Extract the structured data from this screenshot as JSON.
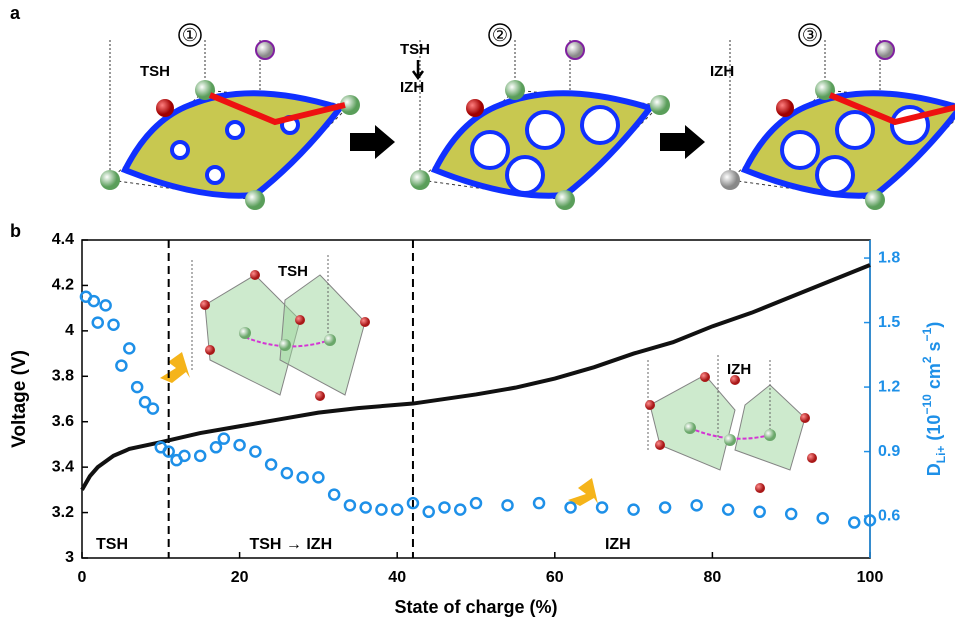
{
  "panel_a": {
    "label": "a",
    "steps": [
      {
        "number": "①",
        "labels": [
          "TSH"
        ]
      },
      {
        "number": "②",
        "labels": [
          "TSH",
          "IZH"
        ]
      },
      {
        "number": "③",
        "labels": [
          "IZH"
        ]
      }
    ]
  },
  "chart_data": {
    "type": "line_scatter",
    "panel_label": "b",
    "xlabel": "State of charge (%)",
    "ylabel": "Voltage (V)",
    "y2label": [
      "D",
      "Li+",
      " (10",
      "−10",
      " cm",
      "2",
      " s",
      "−1",
      ")"
    ],
    "xlim": [
      0,
      100
    ],
    "xticks": [
      0,
      20,
      40,
      60,
      80,
      100
    ],
    "ylim": [
      3,
      4.4
    ],
    "yticks": [
      3,
      3.2,
      3.4,
      3.6,
      3.8,
      4,
      4.2,
      4.4
    ],
    "y2lim": [
      0.405,
      1.884
    ],
    "y2ticks": [
      0.6,
      0.9,
      1.2,
      1.5,
      1.8
    ],
    "series": [
      {
        "name": "Voltage",
        "color": "#111111",
        "axis": "y",
        "x": [
          0,
          1,
          2,
          4,
          6,
          10,
          15,
          20,
          25,
          30,
          35,
          42,
          50,
          55,
          60,
          65,
          70,
          75,
          80,
          85,
          90,
          95,
          100
        ],
        "values": [
          3.3,
          3.36,
          3.4,
          3.45,
          3.48,
          3.51,
          3.55,
          3.58,
          3.61,
          3.64,
          3.66,
          3.68,
          3.72,
          3.75,
          3.79,
          3.84,
          3.9,
          3.95,
          4.02,
          4.08,
          4.15,
          4.22,
          4.29
        ]
      },
      {
        "name": "D",
        "color": "#1e90e8",
        "axis": "y2",
        "x": [
          0.5,
          1.5,
          2,
          3,
          4,
          5,
          6,
          7,
          8,
          9,
          10,
          11,
          12,
          13,
          15,
          17,
          18,
          20,
          22,
          24,
          26,
          28,
          30,
          32,
          34,
          36,
          38,
          40,
          42,
          44,
          46,
          48,
          50,
          54,
          58,
          62,
          66,
          70,
          74,
          78,
          82,
          86,
          90,
          94,
          98,
          100
        ],
        "values": [
          1.62,
          1.6,
          1.5,
          1.58,
          1.49,
          1.3,
          1.38,
          1.2,
          1.13,
          1.1,
          0.92,
          0.9,
          0.86,
          0.88,
          0.88,
          0.92,
          0.96,
          0.93,
          0.9,
          0.84,
          0.8,
          0.78,
          0.78,
          0.7,
          0.65,
          0.64,
          0.63,
          0.63,
          0.66,
          0.62,
          0.64,
          0.63,
          0.66,
          0.65,
          0.66,
          0.64,
          0.64,
          0.63,
          0.64,
          0.65,
          0.63,
          0.62,
          0.61,
          0.59,
          0.57,
          0.58
        ]
      }
    ],
    "phase_boundaries": [
      11,
      42
    ],
    "regions": [
      "TSH",
      "TSH → IZH",
      "IZH"
    ],
    "insets": [
      "TSH",
      "IZH"
    ]
  }
}
